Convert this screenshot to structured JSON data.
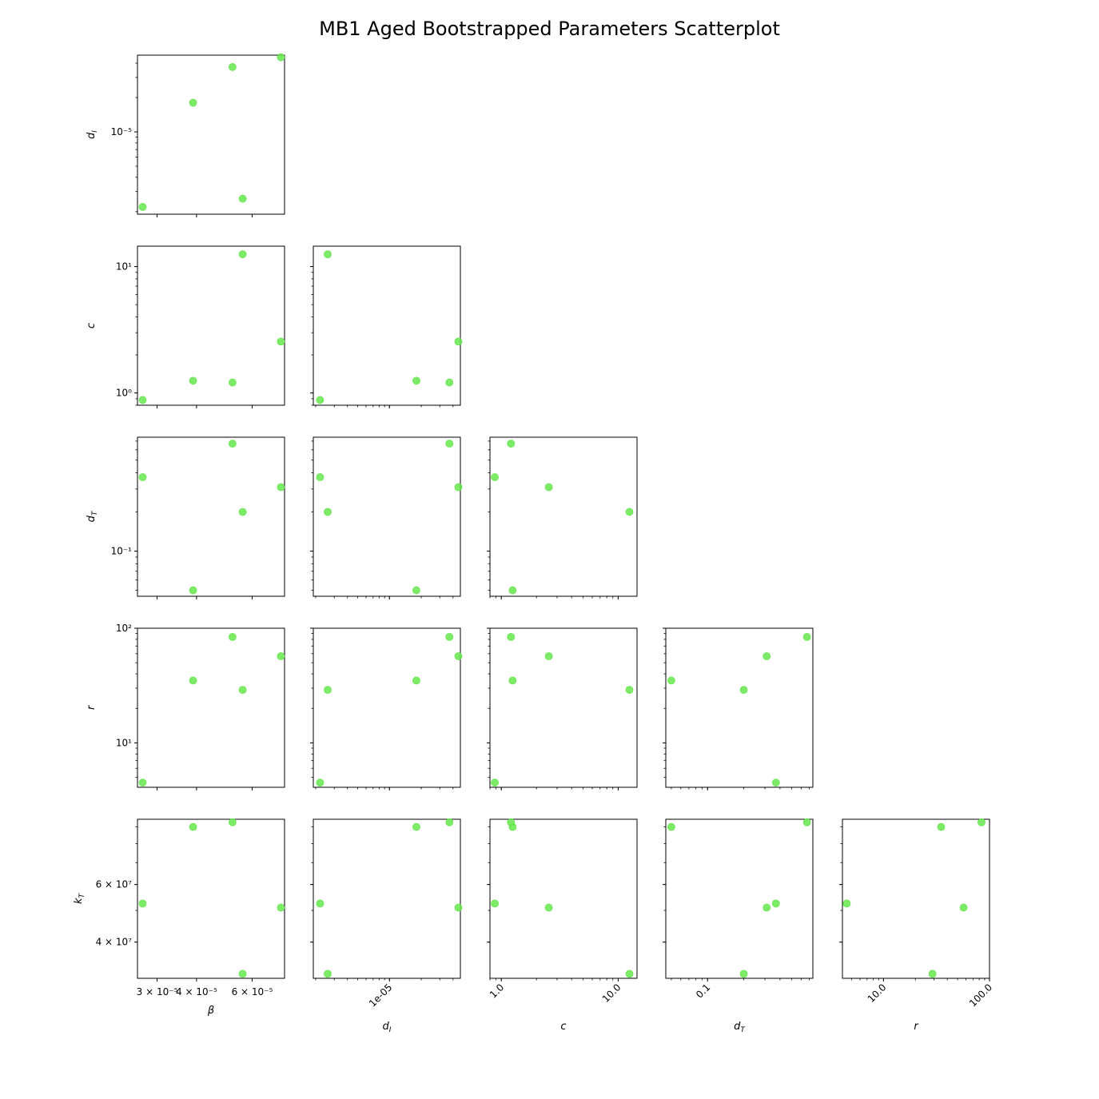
{
  "title": "MB1 Aged Bootstrapped Parameters Scatterplot",
  "point_color": "#66e64d",
  "chart_data": {
    "type": "scatter",
    "title": "MB1 Aged Bootstrapped Parameters Scatterplot",
    "grid": false,
    "log_scale": true,
    "variables": [
      {
        "key": "beta",
        "label": "β",
        "range": [
          2.6e-05,
          7.6e-05
        ],
        "ticks": [
          {
            "v": 3e-05,
            "text": "3 × 10⁻⁵"
          },
          {
            "v": 4e-05,
            "text": "4 × 10⁻⁵"
          },
          {
            "v": 6e-05,
            "text": "6 × 10⁻⁵"
          }
        ]
      },
      {
        "key": "d_I",
        "label": "d_I",
        "range": [
          1.9e-06,
          4.7e-05
        ],
        "ticks": [
          {
            "v": 1e-05,
            "text": "1e-05"
          }
        ],
        "yticks": [
          {
            "v": 1e-05,
            "text": "10⁻⁵"
          }
        ]
      },
      {
        "key": "c",
        "label": "c",
        "range": [
          0.8,
          14.5
        ],
        "ticks": [
          {
            "v": 1.0,
            "text": "1.0"
          },
          {
            "v": 10.0,
            "text": "10.0"
          }
        ],
        "yticks": [
          {
            "v": 1.0,
            "text": "10⁰"
          },
          {
            "v": 10.0,
            "text": "10¹"
          }
        ]
      },
      {
        "key": "d_T",
        "label": "d_T",
        "range": [
          0.045,
          0.75
        ],
        "ticks": [
          {
            "v": 0.1,
            "text": "0.1"
          }
        ],
        "yticks": [
          {
            "v": 0.1,
            "text": "10⁻¹"
          }
        ]
      },
      {
        "key": "r",
        "label": "r",
        "range": [
          4.1,
          100
        ],
        "ticks": [
          {
            "v": 10.0,
            "text": "10.0"
          },
          {
            "v": 100.0,
            "text": "100.0"
          }
        ],
        "yticks": [
          {
            "v": 10.0,
            "text": "10¹"
          },
          {
            "v": 100.0,
            "text": "10²"
          }
        ]
      },
      {
        "key": "k_T",
        "label": "k_T",
        "range": [
          31000000.0,
          95000000.0
        ],
        "yticks": [
          {
            "v": 40000000.0,
            "text": "4 × 10⁷"
          },
          {
            "v": 60000000.0,
            "text": "6 × 10⁷"
          }
        ]
      }
    ],
    "points": [
      {
        "beta": 2.7e-05,
        "d_I": 2.2e-06,
        "c": 0.88,
        "d_T": 0.37,
        "r": 4.5,
        "k_T": 52500000.0
      },
      {
        "beta": 7.4e-05,
        "d_I": 4.5e-05,
        "c": 2.55,
        "d_T": 0.31,
        "r": 57,
        "k_T": 51000000.0
      },
      {
        "beta": 3.9e-05,
        "d_I": 1.8e-05,
        "c": 1.25,
        "d_T": 0.05,
        "r": 35,
        "k_T": 90000000.0
      },
      {
        "beta": 5.2e-05,
        "d_I": 3.7e-05,
        "c": 1.21,
        "d_T": 0.67,
        "r": 84,
        "k_T": 93000000.0
      },
      {
        "beta": 5.6e-05,
        "d_I": 2.6e-06,
        "c": 12.5,
        "d_T": 0.2,
        "r": 29,
        "k_T": 32000000.0
      }
    ]
  }
}
